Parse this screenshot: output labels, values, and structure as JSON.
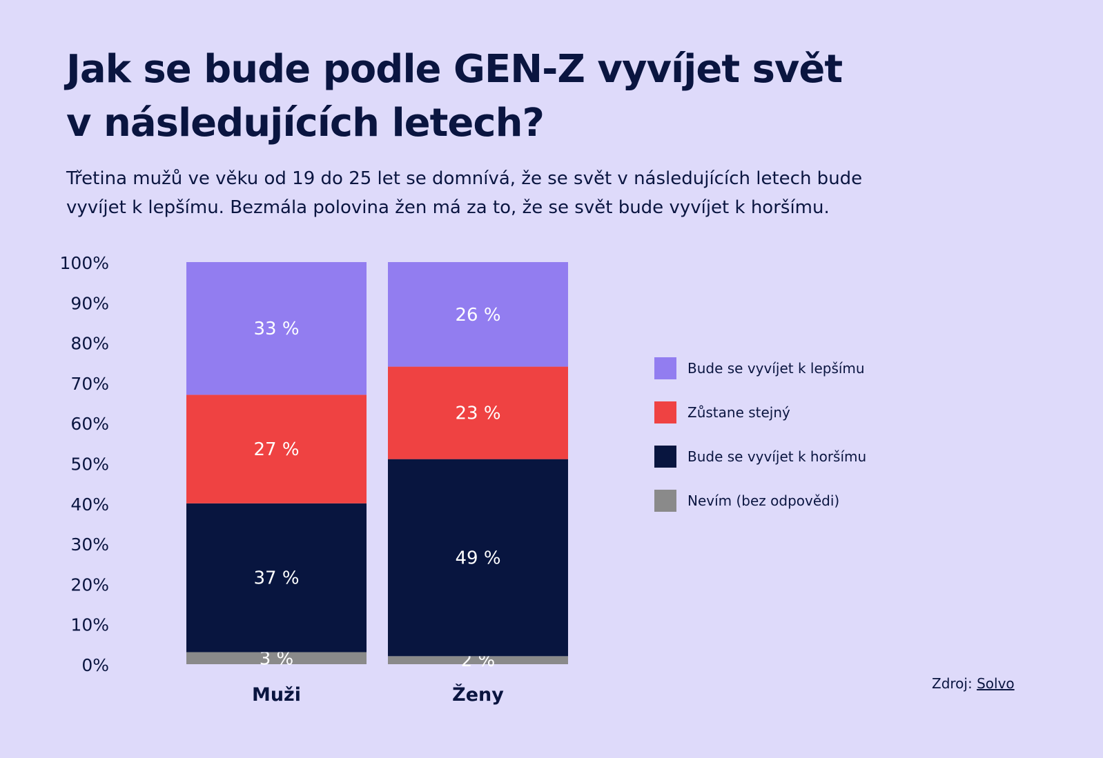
{
  "title_line1": "Jak se bude podle GEN-Z vyvíjet svět",
  "title_line2": "v následujících letech?",
  "subtitle_line1": "Třetina mužů ve věku od 19 do 25 let se domnívá, že se svět v následujících letech bude",
  "subtitle_line2": "vyvíjet k lepšímu. Bezmála polovina žen má za to, že se svět bude vyvíjet k horšímu.",
  "source": {
    "prefix": "Zdroj:",
    "link": "Solvo"
  },
  "colors": {
    "background": "#dedafa",
    "better": "#927df0",
    "same": "#ef4242",
    "worse": "#08153f",
    "dont_know": "#8a8a8a",
    "text": "#0a1540"
  },
  "chart_data": {
    "type": "bar",
    "stacked": true,
    "categories": [
      "Muži",
      "Ženy"
    ],
    "series": [
      {
        "name": "Nevím (bez odpovědi)",
        "values": [
          3,
          2
        ],
        "labels": [
          "3 %",
          "2 %"
        ],
        "color": "#8a8a8a"
      },
      {
        "name": "Bude se vyvíjet k horšímu",
        "values": [
          37,
          49
        ],
        "labels": [
          "37 %",
          "49 %"
        ],
        "color": "#08153f"
      },
      {
        "name": "Zůstane stejný",
        "values": [
          27,
          23
        ],
        "labels": [
          "27 %",
          "23 %"
        ],
        "color": "#ef4242"
      },
      {
        "name": "Bude se vyvíjet k lepšímu",
        "values": [
          33,
          26
        ],
        "labels": [
          "33 %",
          "26 %"
        ],
        "color": "#927df0"
      }
    ],
    "ylim": [
      0,
      100
    ],
    "yticks": [
      "0%",
      "10%",
      "20%",
      "30%",
      "40%",
      "50%",
      "60%",
      "70%",
      "80%",
      "90%",
      "100%"
    ],
    "legend": [
      {
        "label": "Bude se vyvíjet k lepšímu",
        "color": "#927df0"
      },
      {
        "label": "Zůstane stejný",
        "color": "#ef4242"
      },
      {
        "label": "Bude se vyvíjet k horšímu",
        "color": "#08153f"
      },
      {
        "label": "Nevím (bez odpovědi)",
        "color": "#8a8a8a"
      }
    ],
    "legend_position": "right",
    "grid": false
  }
}
